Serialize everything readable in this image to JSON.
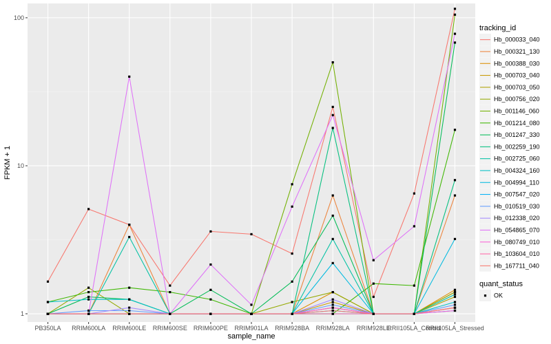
{
  "chart_data": {
    "type": "line",
    "xlabel": "sample_name",
    "ylabel": "FPKM + 1",
    "y_scale": "log10",
    "ylim": [
      0.88,
      125
    ],
    "y_ticks": [
      1,
      10,
      100
    ],
    "y_tick_labels": [
      "1",
      "10",
      "100"
    ],
    "grid": true,
    "categories": [
      "PB350LA",
      "RRIM600LA",
      "RRIM600LE",
      "RRIM600SE",
      "RRIM600PE",
      "RRIM901LA",
      "RRIM928BA",
      "RRIM928LA",
      "RRIM928LE",
      "RRII105LA_Control",
      "RRII105LA_Stressed"
    ],
    "legend_position": "right",
    "legend": {
      "color_title": "tracking_id",
      "shape_title": "quant_status",
      "shape_entries": [
        "OK"
      ]
    },
    "series": [
      {
        "name": "Hb_000033_040",
        "color": "#F8766D",
        "values": [
          1.65,
          5.1,
          4.0,
          1.55,
          3.6,
          3.45,
          2.55,
          25.0,
          1.3,
          6.5,
          115
        ]
      },
      {
        "name": "Hb_000321_130",
        "color": "#EC8239",
        "values": [
          1.0,
          1.0,
          4.0,
          1.0,
          1.0,
          1.0,
          1.0,
          6.3,
          1.0,
          1.0,
          6.3
        ]
      },
      {
        "name": "Hb_000388_030",
        "color": "#DB8E00",
        "values": [
          1.0,
          1.0,
          1.0,
          1.0,
          1.0,
          1.0,
          1.0,
          1.4,
          1.0,
          1.0,
          1.45
        ]
      },
      {
        "name": "Hb_000703_040",
        "color": "#C79800",
        "values": [
          1.0,
          1.0,
          1.0,
          1.0,
          1.0,
          1.0,
          1.0,
          1.2,
          1.0,
          1.0,
          1.4
        ]
      },
      {
        "name": "Hb_000703_050",
        "color": "#AFA100",
        "values": [
          1.0,
          1.0,
          1.0,
          1.0,
          1.0,
          1.0,
          1.0,
          1.1,
          1.0,
          1.0,
          1.3
        ]
      },
      {
        "name": "Hb_000756_020",
        "color": "#94A900",
        "values": [
          1.0,
          1.5,
          1.0,
          1.0,
          1.0,
          1.0,
          1.2,
          1.4,
          1.0,
          1.0,
          1.4
        ]
      },
      {
        "name": "Hb_001146_060",
        "color": "#72B000",
        "values": [
          1.0,
          1.0,
          1.0,
          1.0,
          1.0,
          1.0,
          7.5,
          50.0,
          1.0,
          1.0,
          105
        ]
      },
      {
        "name": "Hb_001214_080",
        "color": "#3DB700",
        "values": [
          1.2,
          1.4,
          1.5,
          1.4,
          1.25,
          1.0,
          1.0,
          1.0,
          1.6,
          1.55,
          17.5
        ]
      },
      {
        "name": "Hb_001247_330",
        "color": "#00BC56",
        "values": [
          1.0,
          1.3,
          1.25,
          1.0,
          1.45,
          1.0,
          1.65,
          4.6,
          1.0,
          1.0,
          68
        ]
      },
      {
        "name": "Hb_002259_190",
        "color": "#00BF7D",
        "values": [
          1.0,
          1.0,
          1.0,
          1.0,
          1.0,
          1.0,
          1.0,
          18.0,
          1.0,
          1.0,
          8.0
        ]
      },
      {
        "name": "Hb_002725_060",
        "color": "#00C1A3",
        "values": [
          1.0,
          1.0,
          3.3,
          1.0,
          1.0,
          1.0,
          1.0,
          3.2,
          1.0,
          1.0,
          1.35
        ]
      },
      {
        "name": "Hb_004324_160",
        "color": "#00BFC4",
        "values": [
          1.2,
          1.25,
          1.25,
          1.0,
          1.0,
          1.0,
          1.0,
          1.0,
          1.0,
          1.0,
          1.2
        ]
      },
      {
        "name": "Hb_004994_110",
        "color": "#00BAE0",
        "values": [
          1.0,
          1.0,
          1.0,
          1.0,
          1.0,
          1.0,
          1.0,
          2.2,
          1.0,
          1.0,
          3.2
        ]
      },
      {
        "name": "Hb_007547_020",
        "color": "#00B0F6",
        "values": [
          1.0,
          1.0,
          1.0,
          1.0,
          1.0,
          1.0,
          1.0,
          1.05,
          1.0,
          1.0,
          1.05
        ]
      },
      {
        "name": "Hb_010519_030",
        "color": "#619CFF",
        "values": [
          1.0,
          1.05,
          1.05,
          1.0,
          1.0,
          1.0,
          1.0,
          1.15,
          1.0,
          1.0,
          1.15
        ]
      },
      {
        "name": "Hb_012338_020",
        "color": "#A58AFF",
        "values": [
          1.0,
          1.0,
          1.1,
          1.0,
          1.0,
          1.0,
          1.0,
          1.25,
          1.0,
          1.0,
          1.1
        ]
      },
      {
        "name": "Hb_054865_070",
        "color": "#DF70F8",
        "values": [
          1.0,
          1.0,
          40.0,
          1.0,
          2.15,
          1.15,
          5.3,
          22.0,
          2.3,
          3.9,
          78
        ]
      },
      {
        "name": "Hb_080749_010",
        "color": "#FB61D7",
        "values": [
          1.0,
          1.0,
          1.0,
          1.0,
          1.0,
          1.0,
          1.0,
          1.1,
          1.0,
          1.0,
          1.05
        ]
      },
      {
        "name": "Hb_103604_010",
        "color": "#FF66A8",
        "values": [
          1.0,
          1.0,
          1.0,
          1.0,
          1.0,
          1.0,
          1.0,
          1.0,
          1.0,
          1.0,
          1.1
        ]
      },
      {
        "name": "Hb_167711_040",
        "color": "#F8766D",
        "values": [
          1.0,
          1.0,
          1.0,
          1.0,
          1.0,
          1.0,
          1.0,
          1.05,
          1.0,
          1.0,
          1.1
        ]
      }
    ]
  }
}
